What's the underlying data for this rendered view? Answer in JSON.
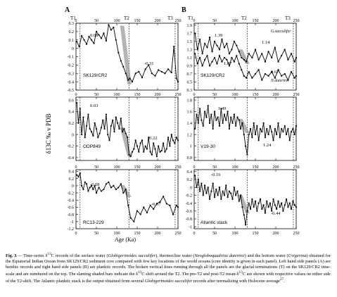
{
  "figure": {
    "panel_labels": [
      "A",
      "B"
    ],
    "y_axis_label": "δ13C ‰ v PDB",
    "x_axis_label": "Age (Ka)",
    "terminations": [
      {
        "label": "T1",
        "age": 10
      },
      {
        "label": "T2",
        "age": 130
      },
      {
        "label": "T3",
        "age": 243
      }
    ],
    "left_x_ticks": [
      "0",
      "50",
      "100",
      "150",
      "200",
      "250"
    ],
    "right_x_ticks": [
      "0",
      "50",
      "100",
      "150",
      "200",
      "250"
    ],
    "panels": [
      {
        "id": "A1",
        "name": "SK129/CR2",
        "means": [
          "0.08",
          "-0.31"
        ],
        "y_ticks": [
          "0.3",
          "0.2",
          "0.1",
          "0",
          "-0.1",
          "-0.2",
          "-0.3",
          "-0.4",
          "-0.5"
        ]
      },
      {
        "id": "A2",
        "name": "ODP849",
        "means": [
          "0.03",
          "-0.22"
        ],
        "y_ticks": [
          "0.6",
          "0.4",
          "0.2",
          "0",
          "-0.2",
          "-0.4"
        ]
      },
      {
        "id": "A3",
        "name": "RC13-229",
        "means": [
          "-0.08",
          "-0.67"
        ],
        "y_ticks": [
          "0.4",
          "0.2",
          "0",
          "-0.2",
          "-0.4",
          "-0.6",
          "-0.8",
          "-1",
          "-1.2"
        ]
      },
      {
        "id": "B1",
        "name": "SK129/CR2",
        "means": [
          "1.39",
          "1.14",
          "1.07",
          "0.67"
        ],
        "species": [
          "G.sacculifer",
          "N.dutertrei"
        ],
        "y_ticks": [
          "1.9",
          "1.7",
          "1.5",
          "1.3",
          "1.1",
          "0.9",
          "0.7",
          "0.5",
          "0.3"
        ]
      },
      {
        "id": "B2",
        "name": "V19-30",
        "means": [
          "1.49",
          "1.24"
        ],
        "y_ticks": [
          "1.8",
          "1.6",
          "1.4",
          "1.2",
          "1",
          "0.8"
        ]
      },
      {
        "id": "B3",
        "name": "Atlantic stack",
        "means": [
          "-0.16",
          "-0.44"
        ],
        "y_ticks": [
          "0.4",
          "0.2",
          "0",
          "-0.2",
          "-0.4",
          "-0.6",
          "-0.8",
          "-1"
        ]
      }
    ]
  },
  "chart_data": [
    {
      "type": "line",
      "title": "SK129/CR2",
      "xlabel": "Age (Ka)",
      "ylabel": "δ13C ‰ v PDB",
      "ylim": [
        -0.5,
        0.3
      ],
      "xlim": [
        0,
        250
      ],
      "series": [
        {
          "x": [
            2,
            8,
            14,
            20,
            26,
            32,
            38,
            44,
            50,
            56,
            62,
            68,
            74,
            80,
            86,
            92,
            98,
            104,
            110,
            116,
            122,
            128,
            132,
            138,
            146,
            154,
            162,
            170,
            178,
            186,
            194,
            202,
            210,
            218,
            226,
            234,
            240,
            246,
            250
          ],
          "values": [
            0.08,
            0.02,
            0.15,
            0.1,
            0.05,
            0.14,
            0.1,
            0.06,
            0.2,
            0.16,
            0.12,
            0.18,
            0.09,
            0.28,
            0.22,
            0.25,
            0.1,
            -0.05,
            -0.15,
            -0.22,
            -0.3,
            -0.38,
            -0.36,
            -0.4,
            -0.3,
            -0.28,
            -0.35,
            -0.25,
            -0.2,
            -0.3,
            -0.33,
            -0.26,
            -0.28,
            -0.3,
            -0.25,
            -0.29,
            0.02,
            -0.36,
            -0.4
          ]
        }
      ]
    },
    {
      "type": "line",
      "title": "ODP849",
      "xlabel": "Age (Ka)",
      "ylabel": "δ13C ‰ v PDB",
      "ylim": [
        -0.45,
        0.65
      ],
      "xlim": [
        0,
        250
      ],
      "series": [
        {
          "x": [
            2,
            6,
            10,
            14,
            18,
            22,
            26,
            30,
            34,
            38,
            42,
            46,
            50,
            54,
            58,
            62,
            66,
            70,
            74,
            78,
            82,
            86,
            90,
            94,
            98,
            102,
            106,
            110,
            114,
            118,
            122,
            126,
            130,
            134,
            138,
            142,
            146,
            150,
            154,
            158,
            162,
            166,
            170,
            174,
            178,
            182,
            186,
            190,
            194,
            198,
            202,
            206,
            210,
            214,
            218,
            222,
            226,
            230,
            234,
            238,
            242,
            246,
            250
          ],
          "values": [
            0.55,
            0.2,
            0.45,
            0.0,
            0.3,
            -0.05,
            0.15,
            0.35,
            0.1,
            0.05,
            -0.02,
            0.2,
            0.1,
            -0.05,
            0.02,
            0.12,
            0.25,
            0.1,
            0.35,
            0.0,
            -0.1,
            0.15,
            0.25,
            0.05,
            0.3,
            0.2,
            0.1,
            0.28,
            0.05,
            0.1,
            0.02,
            -0.05,
            -0.35,
            -0.38,
            -0.3,
            -0.25,
            -0.1,
            -0.2,
            -0.3,
            -0.15,
            -0.1,
            -0.3,
            -0.2,
            -0.25,
            -0.05,
            -0.3,
            -0.35,
            -0.15,
            -0.25,
            -0.38,
            -0.2,
            -0.3,
            -0.28,
            -0.15,
            -0.3,
            -0.25,
            -0.05,
            -0.2,
            0.0,
            -0.1,
            -0.15,
            -0.05,
            -0.1
          ]
        }
      ]
    },
    {
      "type": "line",
      "title": "RC13-229",
      "xlabel": "Age (Ka)",
      "ylabel": "δ13C ‰ v PDB",
      "ylim": [
        -1.2,
        0.45
      ],
      "xlim": [
        0,
        250
      ],
      "series": [
        {
          "x": [
            2,
            6,
            10,
            14,
            18,
            22,
            26,
            30,
            34,
            38,
            42,
            46,
            50,
            56,
            62,
            68,
            74,
            80,
            86,
            92,
            98,
            104,
            110,
            116,
            122,
            128,
            134,
            142,
            150,
            158,
            166,
            174,
            182,
            190,
            198,
            206,
            214,
            222,
            230,
            238,
            246,
            250
          ],
          "values": [
            0.3,
            0.25,
            0.35,
            0.0,
            -0.1,
            0.1,
            0.05,
            -0.15,
            -0.05,
            0.0,
            -0.1,
            0.0,
            -0.2,
            -0.05,
            -0.15,
            -0.1,
            0.05,
            0.1,
            -0.05,
            0.0,
            -0.1,
            -0.05,
            0.05,
            -0.2,
            -0.1,
            -0.55,
            -0.9,
            -1.0,
            -0.7,
            -0.8,
            -0.6,
            -0.75,
            -0.55,
            -0.65,
            -0.5,
            -0.45,
            -0.3,
            -0.5,
            -0.55,
            -0.8,
            -0.55,
            -0.6
          ]
        }
      ]
    },
    {
      "type": "line",
      "title": "SK129/CR2",
      "xlabel": "Age (Ka)",
      "ylabel": "δ13C ‰ v PDB",
      "ylim": [
        0.3,
        1.95
      ],
      "xlim": [
        0,
        250
      ],
      "series": [
        {
          "name": "G.sacculifer",
          "x": [
            2,
            8,
            14,
            20,
            26,
            32,
            38,
            44,
            50,
            56,
            62,
            68,
            74,
            80,
            86,
            92,
            98,
            104,
            110,
            116,
            122,
            128,
            134,
            142,
            150,
            158,
            166,
            174,
            182,
            190,
            198,
            206,
            214,
            222,
            230,
            238,
            246,
            250
          ],
          "values": [
            1.7,
            1.3,
            1.55,
            1.2,
            1.45,
            1.35,
            1.6,
            1.25,
            1.5,
            1.4,
            1.3,
            1.55,
            1.35,
            1.45,
            1.2,
            1.3,
            1.5,
            1.4,
            1.25,
            1.1,
            1.05,
            1.0,
            1.2,
            1.1,
            1.3,
            1.05,
            1.2,
            1.0,
            1.25,
            1.1,
            1.35,
            1.0,
            1.15,
            1.3,
            1.05,
            1.2,
            1.0,
            1.1
          ]
        },
        {
          "name": "N.dutertrei",
          "x": [
            2,
            8,
            14,
            20,
            26,
            32,
            38,
            44,
            50,
            56,
            62,
            68,
            74,
            80,
            86,
            92,
            98,
            104,
            110,
            116,
            122,
            128,
            134,
            142,
            150,
            158,
            166,
            174,
            182,
            190,
            198,
            206,
            214,
            222,
            230,
            238,
            246,
            250
          ],
          "values": [
            1.2,
            0.95,
            1.1,
            0.9,
            1.05,
            1.15,
            0.9,
            1.0,
            1.1,
            0.95,
            1.15,
            1.0,
            1.1,
            1.05,
            0.9,
            1.1,
            1.0,
            1.15,
            0.95,
            0.8,
            0.65,
            0.6,
            0.75,
            0.6,
            0.7,
            0.8,
            0.55,
            0.7,
            0.65,
            0.75,
            0.6,
            0.8,
            0.65,
            0.7,
            0.55,
            0.75,
            0.6,
            0.65
          ]
        }
      ]
    },
    {
      "type": "line",
      "title": "V19-30",
      "xlabel": "Age (Ka)",
      "ylabel": "δ13C ‰ v PDB",
      "ylim": [
        0.75,
        1.85
      ],
      "xlim": [
        0,
        250
      ],
      "series": [
        {
          "x": [
            2,
            6,
            10,
            14,
            18,
            22,
            26,
            30,
            34,
            38,
            42,
            46,
            50,
            54,
            58,
            62,
            66,
            70,
            74,
            78,
            82,
            86,
            90,
            94,
            98,
            102,
            106,
            110,
            114,
            118,
            122,
            126,
            130,
            134,
            138,
            142,
            146,
            150,
            154,
            158,
            162,
            166,
            170,
            174,
            178,
            182,
            186,
            190,
            194,
            198,
            202,
            206,
            210,
            214,
            218,
            222,
            226,
            230,
            234,
            238,
            242,
            246,
            250
          ],
          "values": [
            1.3,
            1.55,
            1.4,
            1.65,
            1.45,
            1.35,
            1.6,
            1.5,
            1.7,
            1.4,
            1.55,
            1.3,
            1.6,
            1.45,
            1.5,
            1.35,
            1.65,
            1.4,
            1.55,
            1.45,
            1.6,
            1.3,
            1.5,
            1.4,
            1.55,
            1.35,
            1.5,
            1.45,
            1.3,
            1.4,
            1.2,
            1.0,
            0.85,
            1.2,
            1.3,
            1.15,
            1.4,
            1.2,
            1.35,
            1.1,
            1.3,
            1.25,
            1.4,
            1.15,
            1.3,
            1.2,
            1.35,
            1.25,
            1.1,
            1.3,
            1.2,
            1.4,
            1.15,
            1.3,
            1.25,
            1.35,
            1.2,
            1.3,
            1.1,
            1.25,
            1.3,
            1.2,
            1.35
          ]
        }
      ]
    },
    {
      "type": "line",
      "title": "Atlantic stack",
      "xlabel": "Age (Ka)",
      "ylabel": "δ13C ‰ v PDB",
      "ylim": [
        -1.05,
        0.45
      ],
      "xlim": [
        0,
        250
      ],
      "series": [
        {
          "x": [
            2,
            6,
            10,
            14,
            18,
            22,
            26,
            30,
            34,
            38,
            42,
            46,
            50,
            54,
            58,
            62,
            66,
            70,
            74,
            78,
            82,
            86,
            90,
            94,
            98,
            102,
            106,
            110,
            114,
            118,
            122,
            126,
            130,
            134,
            138,
            142,
            146,
            150,
            154,
            158,
            162,
            166,
            170,
            174,
            178,
            182,
            186,
            190,
            194,
            198,
            202,
            206,
            210,
            214,
            218,
            222,
            226,
            230,
            234,
            238,
            242,
            246,
            250
          ],
          "values": [
            0.3,
            0.0,
            0.2,
            -0.1,
            0.1,
            -0.2,
            0.05,
            -0.15,
            0.0,
            -0.3,
            -0.1,
            0.1,
            -0.25,
            -0.05,
            -0.2,
            0.0,
            -0.3,
            -0.1,
            -0.2,
            0.05,
            -0.25,
            -0.1,
            -0.15,
            -0.3,
            0.0,
            -0.2,
            -0.1,
            -0.35,
            -0.2,
            -0.5,
            -0.7,
            -0.95,
            -0.6,
            -0.4,
            -0.55,
            -0.3,
            -0.5,
            -0.35,
            -0.6,
            -0.4,
            -0.3,
            -0.55,
            -0.45,
            -0.65,
            -0.35,
            -0.5,
            -0.4,
            -0.6,
            -0.3,
            -0.45,
            -0.55,
            -0.35,
            -0.5,
            -0.4,
            -0.6,
            -0.45,
            -0.3,
            -0.5,
            -0.4,
            -0.55,
            -0.35,
            -0.45,
            -0.5
          ]
        }
      ]
    }
  ],
  "caption": {
    "fig_label": "Fig. 3",
    "line1_pre": " — Time-series δ",
    "line1_post": "C records of the surface water (",
    "species_surface": "Globigerinoides sacculifer",
    "mid_thermo": "), thermocline water (",
    "species_thermo": "Neogloboquadrina dutertrei",
    "mid_bottom": ") and the bottom water (",
    "species_bottom": "Uvigerina",
    "body1": ") obtained for the Equatorial Indian Ocean from SK129/CR2 sediment core compared with few key locations of the world oceans (core identity is given in each panel). Left hand side panels (A) are benthic records and right hand side panels (B) are planktic records. The broken vertical lines running through all the panels are the glacial terminations (T) on the SK129/CR2 time-scale and are numbered on the top. The slanting shaded bars indicate the δ",
    "body2": "C shift around the T2. The pre-T2 and post-T2 mean-δ",
    "body3": "C are shown with respective values on either side of the T2-shift. The Atlantic planktic stack is the output obtained from several ",
    "species_stack": "Globigerinoides sacculifer",
    "body4": " records after normalizing with Holocene average",
    "ref": "27",
    "end": "."
  }
}
